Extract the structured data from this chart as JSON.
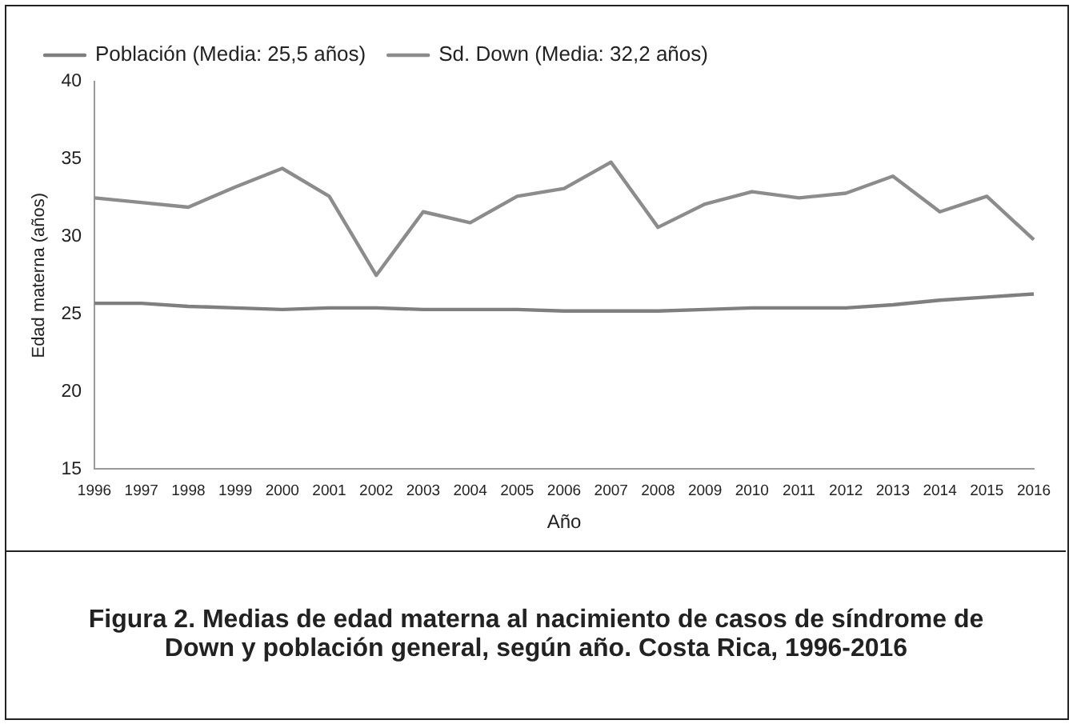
{
  "chart_data": {
    "type": "line",
    "title": "Figura 2. Medias de edad materna al nacimiento de casos de síndrome de Down y población general, según año. Costa Rica, 1996-2016",
    "xlabel": "Año",
    "ylabel": "Edad materna (años)",
    "categories": [
      "1996",
      "1997",
      "1998",
      "1999",
      "2000",
      "2001",
      "2002",
      "2003",
      "2004",
      "2005",
      "2006",
      "2007",
      "2008",
      "2009",
      "2010",
      "2011",
      "2012",
      "2013",
      "2014",
      "2015",
      "2016"
    ],
    "series": [
      {
        "name": "Población (Media: 25,5 años)",
        "color": "#7f7f7f",
        "values": [
          25.7,
          25.7,
          25.5,
          25.4,
          25.3,
          25.4,
          25.4,
          25.3,
          25.3,
          25.3,
          25.2,
          25.2,
          25.2,
          25.3,
          25.4,
          25.4,
          25.4,
          25.6,
          25.9,
          26.1,
          26.3
        ]
      },
      {
        "name": "Sd. Down (Media: 32,2 años)",
        "color": "#8c8c8c",
        "values": [
          32.5,
          32.2,
          31.9,
          33.2,
          34.4,
          32.6,
          27.5,
          31.6,
          30.9,
          32.6,
          33.1,
          34.8,
          30.6,
          32.1,
          32.9,
          32.5,
          32.8,
          33.9,
          31.6,
          32.6,
          29.8
        ]
      }
    ],
    "ylim": [
      15,
      40
    ],
    "yticks": [
      15,
      20,
      25,
      30,
      35,
      40
    ],
    "grid": false,
    "legend": "top",
    "marker": "none",
    "line_style": "solid"
  }
}
